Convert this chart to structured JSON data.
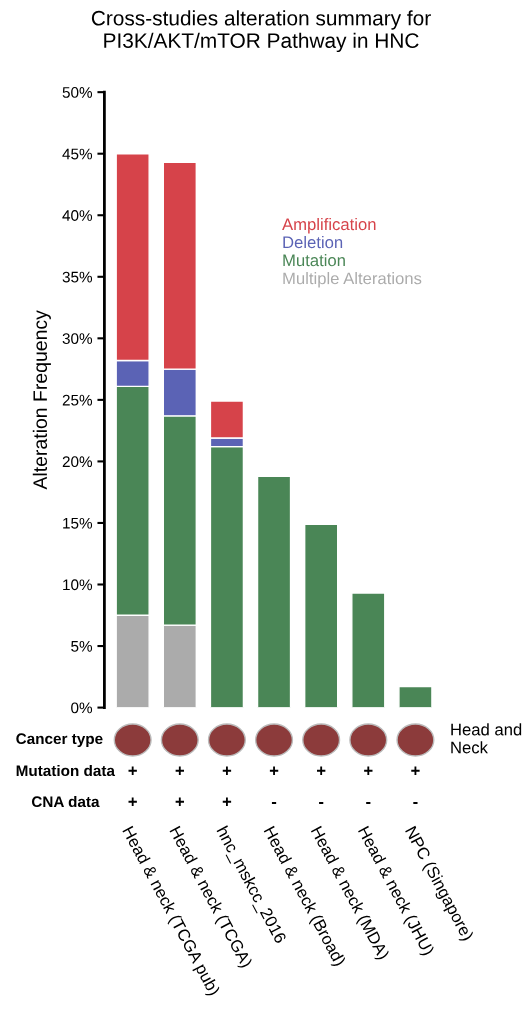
{
  "chart_data": {
    "type": "bar",
    "stacked": true,
    "title": "Cross-studies alteration summary for\nPI3K/AKT/mTOR Pathway in HNC",
    "ylabel": "Alteration Frequency",
    "categories": [
      "Head & neck (TCGA pub)",
      "Head & neck (TCGA)",
      "hnc_mskcc_2016",
      "Head & neck (Broad)",
      "Head & neck (MDA)",
      "Head & neck (JHU)",
      "NPC (Singapore)"
    ],
    "series": [
      {
        "name": "Multiple Alterations",
        "color": "#ababab",
        "values": [
          7.5,
          6.7,
          null,
          null,
          null,
          null,
          null
        ]
      },
      {
        "name": "Mutation",
        "color": "#4a8656",
        "values": [
          18.6,
          17.0,
          21.2,
          18.8,
          14.9,
          9.3,
          1.7
        ]
      },
      {
        "name": "Deletion",
        "color": "#5b63b5",
        "values": [
          2.1,
          3.8,
          0.7,
          null,
          null,
          null,
          null
        ]
      },
      {
        "name": "Amplification",
        "color": "#d6434a",
        "values": [
          16.8,
          16.8,
          3.0,
          null,
          null,
          null,
          null
        ]
      }
    ],
    "ylim": [
      0,
      50
    ],
    "yticks": [
      {
        "value": 0,
        "label": "0%"
      },
      {
        "value": 5,
        "label": "5%"
      },
      {
        "value": 10,
        "label": "10%"
      },
      {
        "value": 15,
        "label": "15%"
      },
      {
        "value": 20,
        "label": "20%"
      },
      {
        "value": 25,
        "label": "25%"
      },
      {
        "value": 30,
        "label": "30%"
      },
      {
        "value": 35,
        "label": "35%"
      },
      {
        "value": 40,
        "label": "40%"
      },
      {
        "value": 45,
        "label": "45%"
      },
      {
        "value": 50,
        "label": "50%"
      }
    ],
    "grid": false,
    "legend": "top right",
    "annotations": [
      "Cancer type",
      "Head and\nNeck",
      "Mutation data",
      "CNA data",
      "+",
      "+",
      "+",
      "+",
      "+",
      "+",
      "+",
      "+",
      "+",
      "+",
      "-",
      "-",
      "-",
      "-"
    ]
  }
}
